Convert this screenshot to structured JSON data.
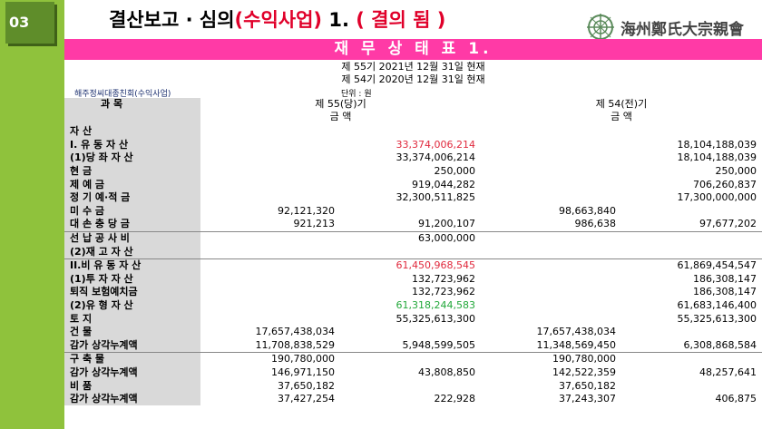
{
  "slide": {
    "badge": "03",
    "title_pre": "결산보고 · 심의",
    "title_red1": "(수익사업)",
    "title_mid": " 1. ",
    "title_red2": "( 결의 됨 )",
    "logo_text": "海州鄭氏大宗親會"
  },
  "band": {
    "title": "재 무 상 태 표 1."
  },
  "sheet": {
    "period_current": "제  55기  2021년 12월 31일 현재",
    "period_prior": "제  54기  2020년 12월 31일 현재",
    "org": "해주정씨대종친회(수익사업)",
    "unit": "단위 : 원"
  },
  "headers": {
    "account": "과      목",
    "cur": "제 55(당)기",
    "prior": "제 54(전)기",
    "amount": "금    액"
  },
  "rows": [
    {
      "label": "자          산",
      "c1": "",
      "c2": "",
      "c3": "",
      "c4": ""
    },
    {
      "label": "I. 유  동  자  산",
      "c1": "",
      "c2": "33,374,006,214",
      "c2c": "red",
      "c3": "",
      "c4": "18,104,188,039"
    },
    {
      "label": "(1)당  좌  자  산",
      "c1": "",
      "c2": "33,374,006,214",
      "c3": "",
      "c4": "18,104,188,039"
    },
    {
      "label": "현          금",
      "c1": "",
      "c2": "250,000",
      "c3": "",
      "c4": "250,000"
    },
    {
      "label": "제    예    금",
      "c1": "",
      "c2": "919,044,282",
      "c3": "",
      "c4": "706,260,837"
    },
    {
      "label": "정 기 예·적 금",
      "c1": "",
      "c2": "32,300,511,825",
      "c3": "",
      "c4": "17,300,000,000"
    },
    {
      "label": "미    수    금",
      "c1": "92,121,320",
      "c2": "",
      "c3": "98,663,840",
      "c4": ""
    },
    {
      "label": "대 손 충 당 금",
      "c1": "921,213",
      "c2": "91,200,107",
      "c3": "986,638",
      "c4": "97,677,202"
    },
    {
      "label": "선 납  공 사 비",
      "c1": "",
      "c2": "63,000,000",
      "c3": "",
      "c4": "",
      "sep": true
    },
    {
      "label": "(2)재  고  자  산",
      "c1": "",
      "c2": "",
      "c3": "",
      "c4": ""
    },
    {
      "label": "II.비 유 동 자 산",
      "c1": "",
      "c2": "61,450,968,545",
      "c2c": "red",
      "c3": "",
      "c4": "61,869,454,547",
      "sep": true
    },
    {
      "label": "(1)투  자  자  산",
      "c1": "",
      "c2": "132,723,962",
      "c3": "",
      "c4": "186,308,147"
    },
    {
      "label": "퇴직 보험예치금",
      "c1": "",
      "c2": "132,723,962",
      "c3": "",
      "c4": "186,308,147"
    },
    {
      "label": "(2)유  형  자  산",
      "c1": "",
      "c2": "61,318,244,583",
      "c2c": "green",
      "c3": "",
      "c4": "61,683,146,400"
    },
    {
      "label": "토          지",
      "c1": "",
      "c2": "55,325,613,300",
      "c3": "",
      "c4": "55,325,613,300"
    },
    {
      "label": "건          물",
      "c1": "17,657,438,034",
      "c2": "",
      "c3": "17,657,438,034",
      "c4": ""
    },
    {
      "label": "감가 상각누계액",
      "c1": "11,708,838,529",
      "c2": "5,948,599,505",
      "c3": "11,348,569,450",
      "c4": "6,308,868,584"
    },
    {
      "label": "구    축    물",
      "c1": "190,780,000",
      "c2": "",
      "c3": "190,780,000",
      "c4": "",
      "sep": true
    },
    {
      "label": "감가 상각누계액",
      "c1": "146,971,150",
      "c2": "43,808,850",
      "c3": "142,522,359",
      "c4": "48,257,641"
    },
    {
      "label": "비          품",
      "c1": "37,650,182",
      "c2": "",
      "c3": "37,650,182",
      "c4": ""
    },
    {
      "label": "감가 상각누계액",
      "c1": "37,427,254",
      "c2": "222,928",
      "c3": "37,243,307",
      "c4": "406,875"
    }
  ]
}
